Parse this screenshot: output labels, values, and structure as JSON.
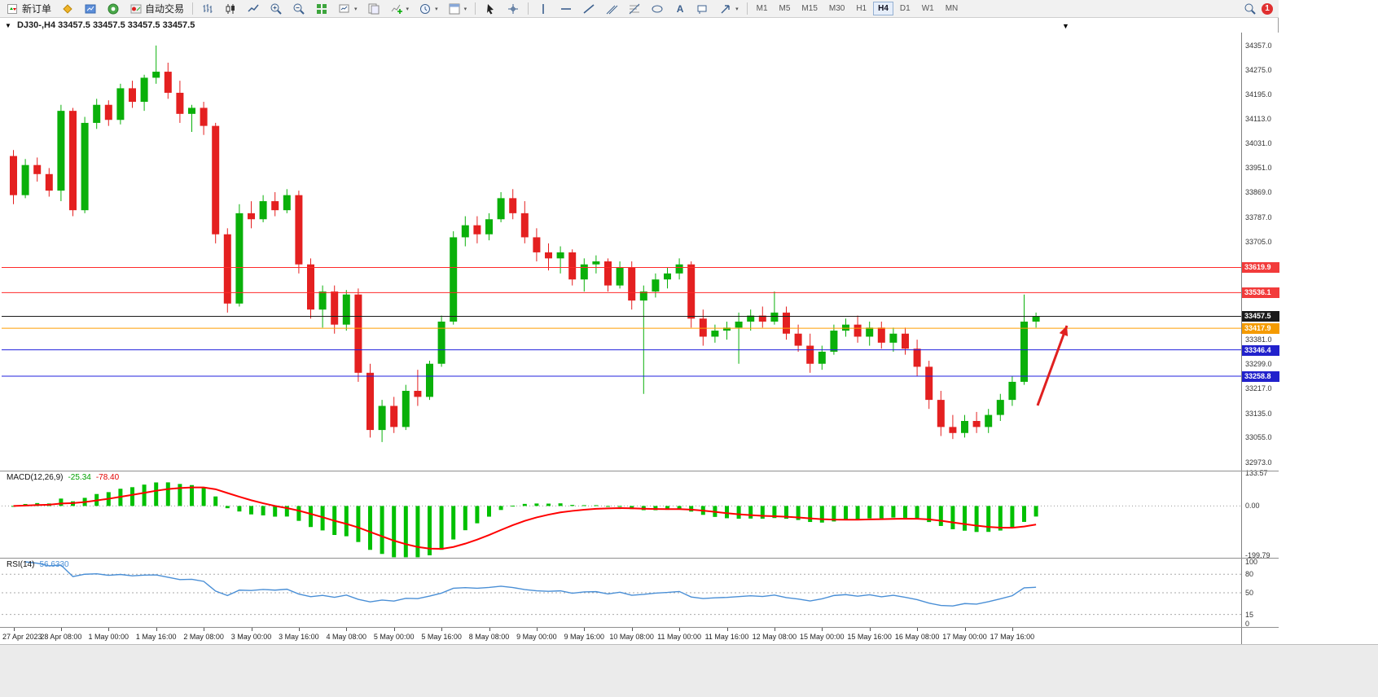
{
  "colors": {
    "bull": "#0ab00a",
    "bear": "#e42020",
    "macd_hist": "#00c000",
    "macd_signal": "#ff0000",
    "rsi_line": "#4a8fd6",
    "arrow": "#e02020",
    "level_red": "#ff2a2a",
    "level_orange": "#ff9d00",
    "level_blue": "#2121dd",
    "level_black": "#1a1a1a"
  },
  "toolbar": {
    "new_order_label": "新订单",
    "auto_trading_label": "自动交易",
    "timeframes": [
      "M1",
      "M5",
      "M15",
      "M30",
      "H1",
      "H4",
      "D1",
      "W1",
      "MN"
    ],
    "active_timeframe": "H4",
    "notification_count": "1",
    "icons": {
      "new_order": "candles-plus",
      "mql5": "gold-diamond",
      "market": "blue-chart",
      "community": "green-circle",
      "auto_trading": "red-indicator",
      "bar_chart": "ohlc-bars",
      "candlestick": "candles",
      "line_chart": "polyline",
      "zoom_in": "magnifier-plus",
      "zoom_out": "magnifier-minus",
      "tile_windows": "green-grid",
      "new_chart": "chart-page",
      "indicators": "chart-green-plus",
      "periods": "clock",
      "templates": "page-header",
      "cursor": "pointer",
      "crosshair": "cross",
      "vertical_line": "vbar",
      "horizontal_line": "hbar",
      "trendline": "diagonal",
      "channel": "double-diagonal",
      "fibonacci": "fib-lines",
      "shapes": "ellipse",
      "text": "A",
      "arrows": "ne-arrow",
      "search": "magnifier",
      "notification": "red-badge"
    }
  },
  "chart": {
    "symbol_period": "DJ30-,H4",
    "ohlc": "33457.5 33457.5 33457.5 33457.5"
  },
  "chart_data": {
    "type": "candlestick",
    "symbol": "DJ30-",
    "period": "H4",
    "price_axis": {
      "max": 34400,
      "min": 32945,
      "ticks": [
        "34357.0",
        "34275.0",
        "34195.0",
        "34113.0",
        "34031.0",
        "33951.0",
        "33869.0",
        "33787.0",
        "33705.0",
        "33381.0",
        "33299.0",
        "33217.0",
        "33135.0",
        "33055.0",
        "32973.0"
      ]
    },
    "levels": [
      {
        "price": 33619.9,
        "label": "33619.9",
        "color": "#ff2a2a",
        "label_bg": "#f23b3b"
      },
      {
        "price": 33536.1,
        "label": "33536.1",
        "color": "#ff2a2a",
        "label_bg": "#f23b3b"
      },
      {
        "price": 33457.5,
        "label": "33457.5",
        "color": "#1a1a1a",
        "label_bg": "#1a1a1a"
      },
      {
        "price": 33417.9,
        "label": "33417.9",
        "color": "#ff9d00",
        "label_bg": "#f59b00"
      },
      {
        "price": 33346.4,
        "label": "33346.4",
        "color": "#2121dd",
        "label_bg": "#2222cc"
      },
      {
        "price": 33258.8,
        "label": "33258.8",
        "color": "#2121dd",
        "label_bg": "#2222cc"
      }
    ],
    "time_labels": [
      "27 Apr 2023",
      "28 Apr 08:00",
      "1 May 00:00",
      "1 May 16:00",
      "2 May 08:00",
      "3 May 00:00",
      "3 May 16:00",
      "4 May 08:00",
      "5 May 00:00",
      "5 May 16:00",
      "8 May 08:00",
      "9 May 00:00",
      "9 May 16:00",
      "10 May 08:00",
      "11 May 00:00",
      "11 May 16:00",
      "12 May 08:00",
      "15 May 00:00",
      "15 May 16:00",
      "16 May 08:00",
      "17 May 00:00",
      "17 May 16:00"
    ],
    "label_every": 4,
    "annotation_arrow": {
      "from": [
        1272,
        458
      ],
      "to": [
        1308,
        360
      ]
    },
    "candles": [
      [
        33990,
        34010,
        33830,
        33860
      ],
      [
        33860,
        33980,
        33850,
        33960
      ],
      [
        33960,
        33985,
        33905,
        33930
      ],
      [
        33930,
        33950,
        33855,
        33875
      ],
      [
        33875,
        34160,
        33840,
        34140
      ],
      [
        34140,
        34150,
        33790,
        33810
      ],
      [
        33810,
        34120,
        33800,
        34100
      ],
      [
        34100,
        34180,
        34080,
        34160
      ],
      [
        34160,
        34175,
        34090,
        34110
      ],
      [
        34110,
        34230,
        34095,
        34215
      ],
      [
        34215,
        34240,
        34150,
        34170
      ],
      [
        34170,
        34260,
        34140,
        34250
      ],
      [
        34250,
        34357,
        34230,
        34270
      ],
      [
        34270,
        34300,
        34180,
        34200
      ],
      [
        34200,
        34240,
        34100,
        34130
      ],
      [
        34130,
        34160,
        34070,
        34150
      ],
      [
        34150,
        34170,
        34060,
        34090
      ],
      [
        34090,
        34100,
        33700,
        33730
      ],
      [
        33730,
        33750,
        33470,
        33500
      ],
      [
        33500,
        33830,
        33490,
        33800
      ],
      [
        33800,
        33840,
        33750,
        33780
      ],
      [
        33780,
        33860,
        33770,
        33840
      ],
      [
        33840,
        33870,
        33790,
        33810
      ],
      [
        33810,
        33880,
        33800,
        33860
      ],
      [
        33860,
        33875,
        33600,
        33630
      ],
      [
        33630,
        33650,
        33450,
        33480
      ],
      [
        33480,
        33560,
        33420,
        33540
      ],
      [
        33540,
        33560,
        33400,
        33430
      ],
      [
        33430,
        33545,
        33410,
        33530
      ],
      [
        33530,
        33550,
        33240,
        33270
      ],
      [
        33270,
        33300,
        33055,
        33080
      ],
      [
        33080,
        33180,
        33040,
        33160
      ],
      [
        33160,
        33190,
        33070,
        33090
      ],
      [
        33090,
        33230,
        33080,
        33210
      ],
      [
        33210,
        33280,
        33160,
        33190
      ],
      [
        33190,
        33310,
        33180,
        33300
      ],
      [
        33300,
        33460,
        33290,
        33440
      ],
      [
        33440,
        33740,
        33430,
        33720
      ],
      [
        33720,
        33790,
        33690,
        33760
      ],
      [
        33760,
        33790,
        33700,
        33730
      ],
      [
        33730,
        33800,
        33710,
        33780
      ],
      [
        33780,
        33870,
        33770,
        33850
      ],
      [
        33850,
        33880,
        33780,
        33800
      ],
      [
        33800,
        33840,
        33700,
        33720
      ],
      [
        33720,
        33750,
        33640,
        33670
      ],
      [
        33670,
        33700,
        33610,
        33650
      ],
      [
        33650,
        33690,
        33600,
        33670
      ],
      [
        33670,
        33680,
        33560,
        33580
      ],
      [
        33580,
        33650,
        33540,
        33630
      ],
      [
        33630,
        33660,
        33600,
        33640
      ],
      [
        33640,
        33650,
        33540,
        33560
      ],
      [
        33560,
        33640,
        33550,
        33620
      ],
      [
        33620,
        33640,
        33480,
        33510
      ],
      [
        33510,
        33560,
        33200,
        33540
      ],
      [
        33540,
        33600,
        33520,
        33580
      ],
      [
        33580,
        33620,
        33550,
        33600
      ],
      [
        33600,
        33650,
        33580,
        33630
      ],
      [
        33630,
        33640,
        33420,
        33450
      ],
      [
        33450,
        33480,
        33360,
        33390
      ],
      [
        33390,
        33430,
        33370,
        33410
      ],
      [
        33410,
        33440,
        33380,
        33420
      ],
      [
        33420,
        33470,
        33300,
        33440
      ],
      [
        33440,
        33480,
        33410,
        33460
      ],
      [
        33460,
        33490,
        33420,
        33440
      ],
      [
        33440,
        33540,
        33430,
        33470
      ],
      [
        33470,
        33490,
        33380,
        33400
      ],
      [
        33400,
        33430,
        33340,
        33360
      ],
      [
        33360,
        33400,
        33270,
        33300
      ],
      [
        33300,
        33360,
        33280,
        33340
      ],
      [
        33340,
        33430,
        33330,
        33410
      ],
      [
        33410,
        33450,
        33390,
        33430
      ],
      [
        33430,
        33460,
        33370,
        33390
      ],
      [
        33390,
        33440,
        33360,
        33420
      ],
      [
        33420,
        33440,
        33350,
        33370
      ],
      [
        33370,
        33420,
        33340,
        33400
      ],
      [
        33400,
        33420,
        33330,
        33350
      ],
      [
        33350,
        33380,
        33260,
        33290
      ],
      [
        33290,
        33310,
        33150,
        33180
      ],
      [
        33180,
        33210,
        33060,
        33090
      ],
      [
        33090,
        33130,
        33050,
        33070
      ],
      [
        33070,
        33130,
        33055,
        33110
      ],
      [
        33110,
        33140,
        33070,
        33090
      ],
      [
        33090,
        33150,
        33070,
        33130
      ],
      [
        33130,
        33200,
        33110,
        33180
      ],
      [
        33180,
        33260,
        33160,
        33240
      ],
      [
        33240,
        33530,
        33230,
        33440
      ],
      [
        33440,
        33470,
        33420,
        33457.5
      ]
    ]
  },
  "macd": {
    "label": "MACD(12,26,9)",
    "value_main": "-25.34",
    "value_signal": "-78.40",
    "axis": [
      "133.57",
      "0.00",
      "-199.79"
    ],
    "range": {
      "max": 140,
      "min": -210
    },
    "fast": 12,
    "slow": 26,
    "signal": 9
  },
  "rsi": {
    "label": "RSI(14)",
    "value": "56.6330",
    "axis": [
      "100",
      "80",
      "50",
      "15",
      "0"
    ],
    "levels": [
      80,
      50,
      15
    ],
    "period": 14
  }
}
